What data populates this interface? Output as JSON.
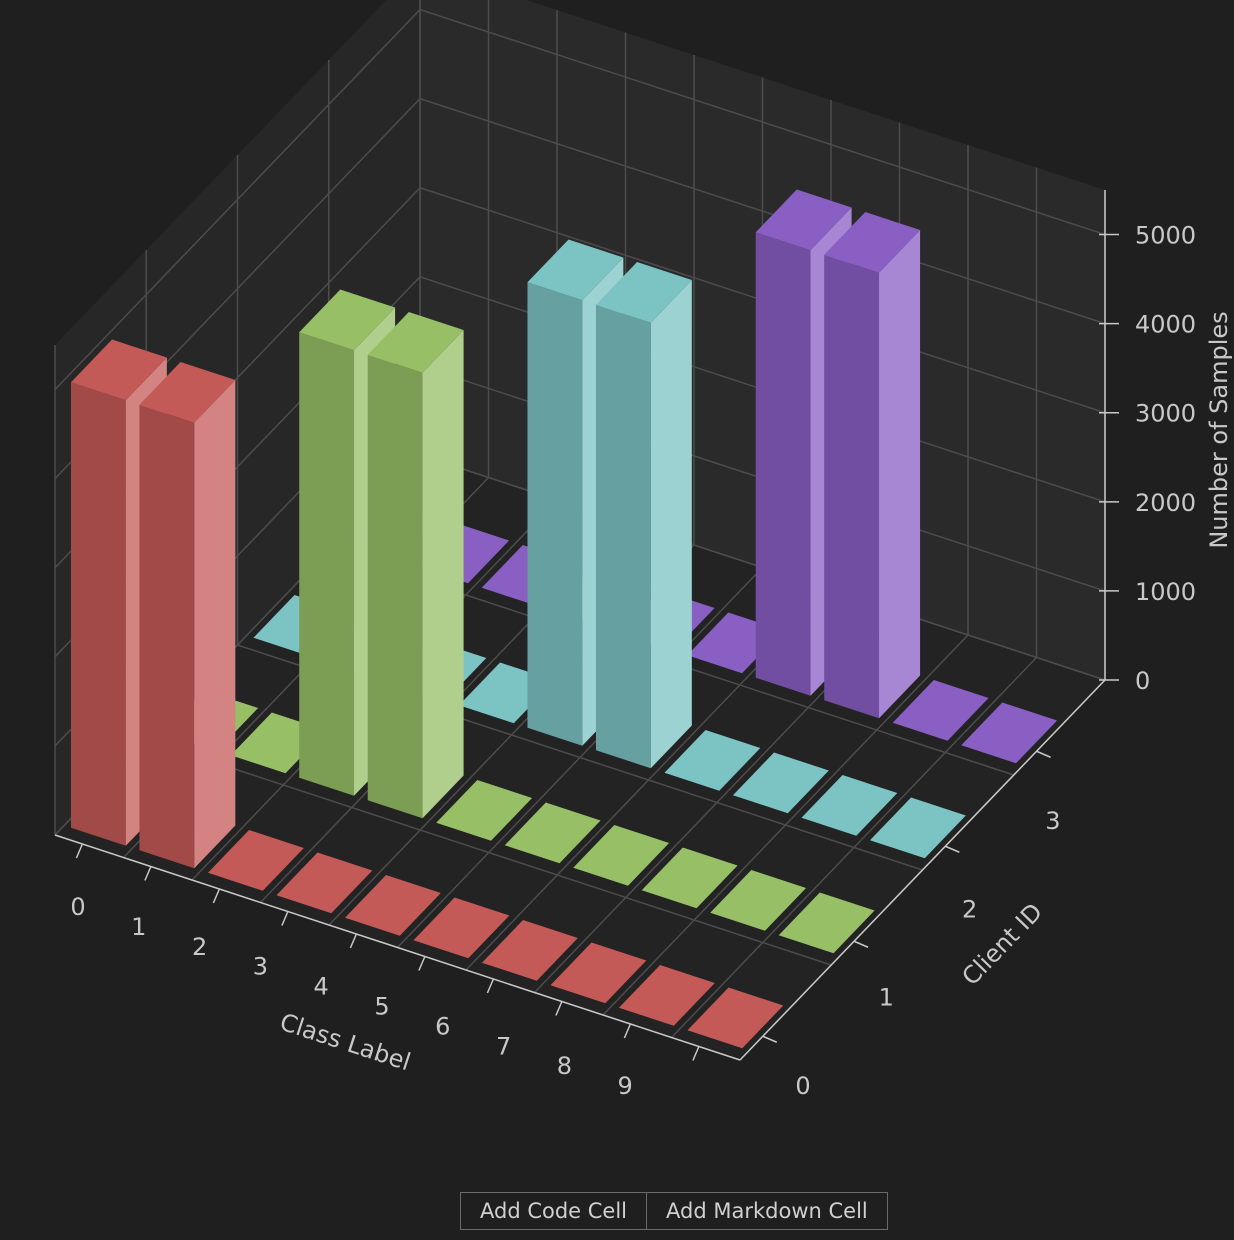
{
  "chart_data": {
    "type": "bar3d",
    "xlabel": "Class Label",
    "ylabel": "Client ID",
    "zlabel": "Number of Samples",
    "categories": [
      "0",
      "1",
      "2",
      "3",
      "4",
      "5",
      "6",
      "7",
      "8",
      "9"
    ],
    "series": [
      {
        "name": "0",
        "color": "#c45a57",
        "values": [
          5000,
          5000,
          0,
          0,
          0,
          0,
          0,
          0,
          0,
          0
        ]
      },
      {
        "name": "1",
        "color": "#97bf66",
        "values": [
          0,
          0,
          5000,
          5000,
          0,
          0,
          0,
          0,
          0,
          0
        ]
      },
      {
        "name": "2",
        "color": "#7cc3c3",
        "values": [
          0,
          0,
          0,
          0,
          5000,
          5000,
          0,
          0,
          0,
          0
        ]
      },
      {
        "name": "3",
        "color": "#8a5fc4",
        "values": [
          0,
          0,
          0,
          0,
          0,
          0,
          5000,
          5000,
          0,
          0
        ]
      }
    ],
    "zlim": [
      0,
      5500
    ],
    "zticks": [
      0,
      1000,
      2000,
      3000,
      4000,
      5000
    ],
    "grid": true
  },
  "toolbar": {
    "buttons": [
      "Add Code Cell",
      "Add Markdown Cell"
    ]
  }
}
